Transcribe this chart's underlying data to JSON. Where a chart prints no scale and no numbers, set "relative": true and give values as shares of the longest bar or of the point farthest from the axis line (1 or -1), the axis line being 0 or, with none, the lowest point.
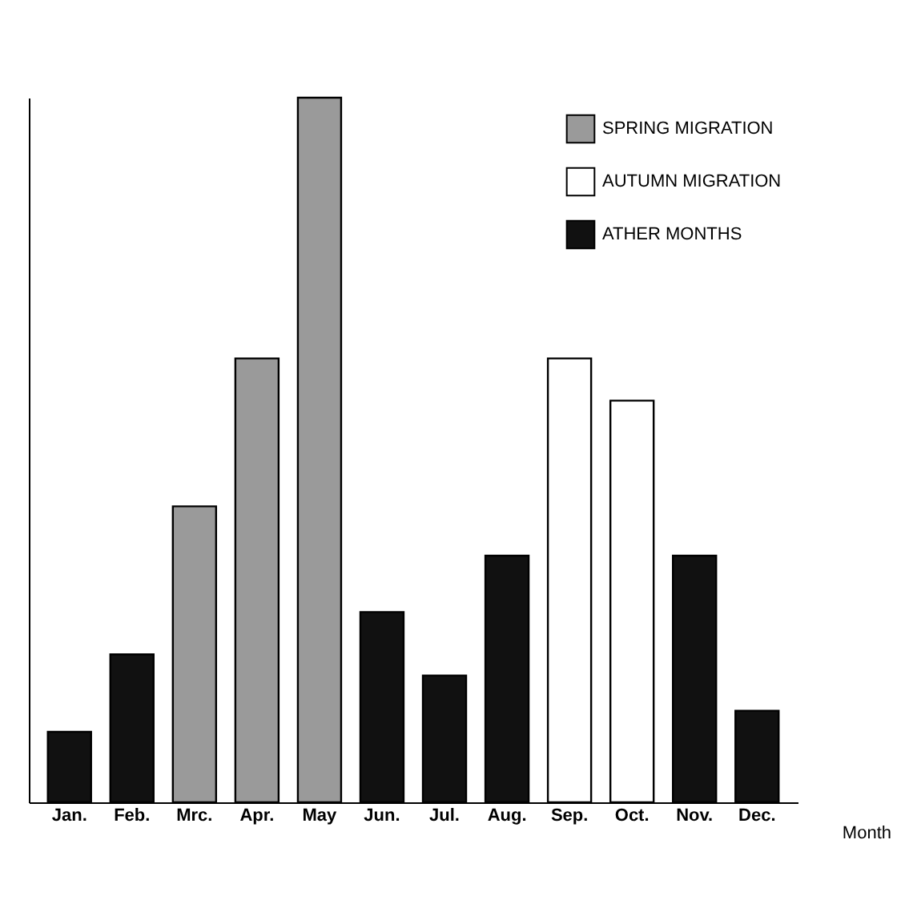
{
  "chart_data": {
    "type": "bar",
    "relative": true,
    "xlabel": "Month",
    "legend": "top right",
    "categories": [
      "Jan.",
      "Feb.",
      "Mrc.",
      "Apr.",
      "May",
      "Jun.",
      "Jul.",
      "Aug.",
      "Sep.",
      "Oct.",
      "Nov.",
      "Dec."
    ],
    "series": [
      {
        "name": "SPRING MIGRATION",
        "color": "#9a9a9a",
        "values": [
          null,
          null,
          0.42,
          0.63,
          1,
          null,
          null,
          null,
          null,
          null,
          null,
          null
        ]
      },
      {
        "name": "AUTUMN MIGRATION",
        "color": "#ffffff",
        "values": [
          null,
          null,
          null,
          null,
          null,
          null,
          null,
          null,
          0.63,
          0.57,
          null,
          null
        ]
      },
      {
        "name": "ATHER MONTHS",
        "color": "#111111",
        "values": [
          0.1,
          0.21,
          null,
          null,
          null,
          0.27,
          0.18,
          0.35,
          null,
          null,
          0.35,
          0.13
        ]
      }
    ]
  }
}
